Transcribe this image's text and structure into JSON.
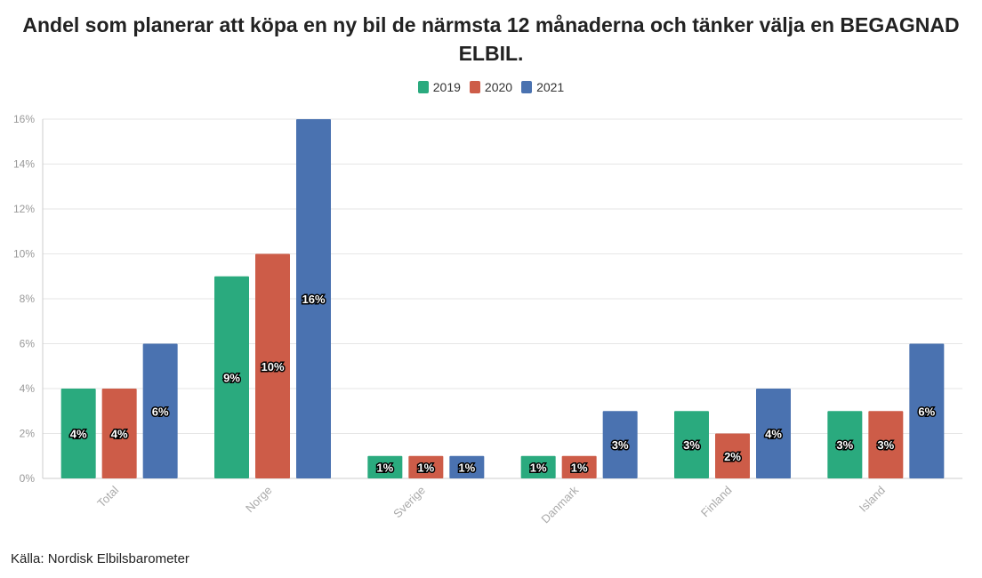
{
  "chart_data": {
    "type": "bar",
    "title": "Andel som planerar att köpa en ny bil de närmsta 12 månaderna och tänker välja en BEGAGNAD ELBIL.",
    "categories": [
      "Total",
      "Norge",
      "Sverige",
      "Danmark",
      "Finland",
      "Island"
    ],
    "series": [
      {
        "name": "2019",
        "color": "#2aaa7e",
        "values": [
          4,
          9,
          1,
          1,
          3,
          3
        ],
        "labels": [
          "4%",
          "9%",
          "1%",
          "1%",
          "3%",
          "3%"
        ]
      },
      {
        "name": "2020",
        "color": "#cd5c48",
        "values": [
          4,
          10,
          1,
          1,
          2,
          3
        ],
        "labels": [
          "4%",
          "10%",
          "1%",
          "1%",
          "2%",
          "3%"
        ]
      },
      {
        "name": "2021",
        "color": "#4a72b0",
        "values": [
          6,
          16,
          1,
          3,
          4,
          6
        ],
        "labels": [
          "6%",
          "16%",
          "1%",
          "3%",
          "4%",
          "6%"
        ]
      }
    ],
    "yticks": [
      "0%",
      "2%",
      "4%",
      "6%",
      "8%",
      "10%",
      "12%",
      "14%",
      "16%"
    ],
    "ylim": [
      0,
      16
    ],
    "grid": true,
    "legend_position": "top-center"
  },
  "source_text": "Källa: Nordisk Elbilsbarometer"
}
